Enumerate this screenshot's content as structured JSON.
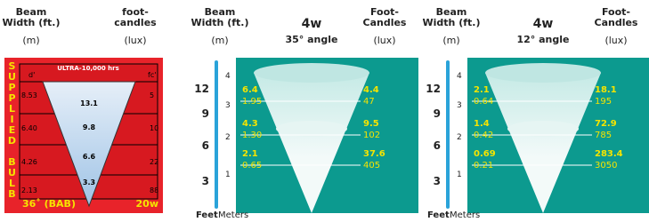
{
  "bulb_panel": {
    "beam_width_label": "Beam Width (ft.)",
    "beam_width_unit": "(m)",
    "fc_label": "foot-candles",
    "fc_unit": "(lux)",
    "side_label": "SUPPLIED BULB",
    "d_label": "d'",
    "fc_short": "fc'",
    "life": "ULTRA-10,000 hrs",
    "rows": [
      {
        "width": "8.53",
        "center": "13.1",
        "fc": "5"
      },
      {
        "width": "6.40",
        "center": "9.8",
        "fc": "10"
      },
      {
        "width": "4.26",
        "center": "6.6",
        "fc": "22"
      },
      {
        "width": "2.13",
        "center": "3.3",
        "fc": "88"
      }
    ],
    "angle": "36˚ (BAB)",
    "watts": "20w"
  },
  "led_panels": [
    {
      "beam_width_label": "Beam Width (ft.)",
      "beam_width_unit": "(m)",
      "watts": "4w",
      "angle": "35° angle",
      "fc_label": "Foot-Candles",
      "fc_unit": "(lux)",
      "feet_ticks": [
        "12",
        "9",
        "6",
        "3"
      ],
      "meter_ticks": [
        "4",
        "3",
        "2",
        "1"
      ],
      "rows": [
        {
          "width_ft": "6.4",
          "width_m": "1.95",
          "fc": "4.4",
          "lux": "47"
        },
        {
          "width_ft": "4.3",
          "width_m": "1.30",
          "fc": "9.5",
          "lux": "102"
        },
        {
          "width_ft": "2.1",
          "width_m": "0.65",
          "fc": "37.6",
          "lux": "405"
        }
      ],
      "axis_feet": "Feet",
      "axis_meters": "Meters"
    },
    {
      "beam_width_label": "Beam Width (ft.)",
      "beam_width_unit": "(m)",
      "watts": "4w",
      "angle": "12° angle",
      "fc_label": "Foot-Candles",
      "fc_unit": "(lux)",
      "feet_ticks": [
        "12",
        "9",
        "6",
        "3"
      ],
      "meter_ticks": [
        "4",
        "3",
        "2",
        "1"
      ],
      "rows": [
        {
          "width_ft": "2.1",
          "width_m": "0.64",
          "fc": "18.1",
          "lux": "195"
        },
        {
          "width_ft": "1.4",
          "width_m": "0.42",
          "fc": "72.9",
          "lux": "785"
        },
        {
          "width_ft": "0.69",
          "width_m": "0.21",
          "fc": "283.4",
          "lux": "3050"
        }
      ],
      "axis_feet": "Feet",
      "axis_meters": "Meters"
    }
  ]
}
